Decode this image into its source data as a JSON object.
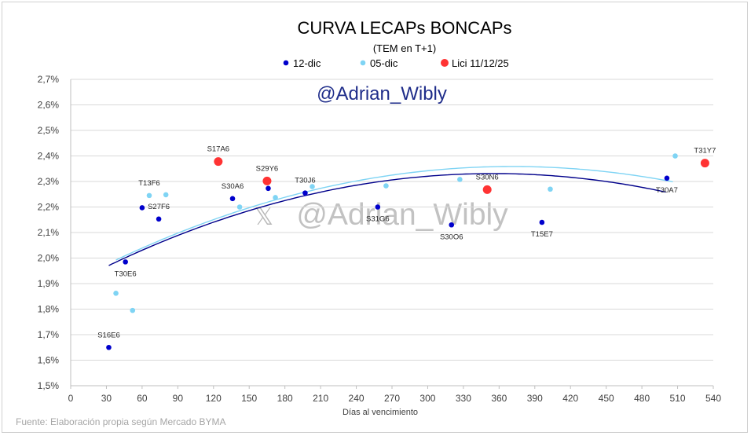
{
  "chart_data": {
    "type": "scatter",
    "title": "CURVA LECAPs BONCAPs",
    "subtitle": "(TEM en T+1)",
    "xlabel": "Días al vencimiento",
    "ylabel": "",
    "xlim": [
      0,
      540
    ],
    "ylim": [
      1.5,
      2.7
    ],
    "x_ticks": [
      "0",
      "30",
      "60",
      "90",
      "120",
      "150",
      "180",
      "210",
      "240",
      "270",
      "300",
      "330",
      "360",
      "390",
      "420",
      "450",
      "480",
      "510",
      "540"
    ],
    "y_ticks": [
      "1,5%",
      "1,6%",
      "1,7%",
      "1,8%",
      "1,9%",
      "2,0%",
      "2,1%",
      "2,2%",
      "2,3%",
      "2,4%",
      "2,5%",
      "2,6%",
      "2,7%"
    ],
    "grid": "horizontal",
    "legend_placement": "top-center",
    "series": [
      {
        "name": "12-dic",
        "color": "#0000cc",
        "points": [
          {
            "x": 32,
            "y": 1.65,
            "label": "S16E6"
          },
          {
            "x": 46,
            "y": 1.985,
            "label": "T30E6"
          },
          {
            "x": 60,
            "y": 2.197,
            "label": ""
          },
          {
            "x": 74,
            "y": 2.153,
            "label": "S27F6"
          },
          {
            "x": 136,
            "y": 2.233,
            "label": "S30A6"
          },
          {
            "x": 166,
            "y": 2.273,
            "label": ""
          },
          {
            "x": 197,
            "y": 2.255,
            "label": "T30J6"
          },
          {
            "x": 258,
            "y": 2.2,
            "label": "S31G6"
          },
          {
            "x": 320,
            "y": 2.13,
            "label": "S30O6"
          },
          {
            "x": 396,
            "y": 2.14,
            "label": "T15E7"
          },
          {
            "x": 501,
            "y": 2.313,
            "label": "T30A7"
          }
        ]
      },
      {
        "name": "05-dic",
        "color": "#7fd4f4",
        "points": [
          {
            "x": 38,
            "y": 1.862,
            "label": ""
          },
          {
            "x": 52,
            "y": 1.795,
            "label": ""
          },
          {
            "x": 66,
            "y": 2.245,
            "label": "T13F6"
          },
          {
            "x": 80,
            "y": 2.248,
            "label": ""
          },
          {
            "x": 142,
            "y": 2.2,
            "label": ""
          },
          {
            "x": 172,
            "y": 2.237,
            "label": ""
          },
          {
            "x": 203,
            "y": 2.28,
            "label": ""
          },
          {
            "x": 265,
            "y": 2.283,
            "label": ""
          },
          {
            "x": 327,
            "y": 2.308,
            "label": ""
          },
          {
            "x": 403,
            "y": 2.27,
            "label": ""
          },
          {
            "x": 508,
            "y": 2.4,
            "label": ""
          }
        ]
      },
      {
        "name": "Lici 11/12/25",
        "color": "#ff3333",
        "points": [
          {
            "x": 124,
            "y": 2.378,
            "label": "S17A6"
          },
          {
            "x": 165,
            "y": 2.302,
            "label": "S29Y6"
          },
          {
            "x": 350,
            "y": 2.268,
            "label": "S30N6"
          },
          {
            "x": 533,
            "y": 2.372,
            "label": "T31Y7"
          }
        ]
      }
    ],
    "trendlines": [
      {
        "series": "12-dic",
        "color": "#00008b",
        "x_range": [
          32,
          501
        ],
        "poly": [
          1.896,
          0.00245,
          -3.45e-06
        ]
      },
      {
        "series": "05-dic",
        "color": "#7fd4f4",
        "x_range": [
          38,
          508
        ],
        "poly": [
          1.904,
          0.00245,
          -3.3e-06
        ]
      }
    ],
    "watermark": "@Adrian_Wibly",
    "source": "Fuente: Elaboración propia según Mercado BYMA"
  }
}
